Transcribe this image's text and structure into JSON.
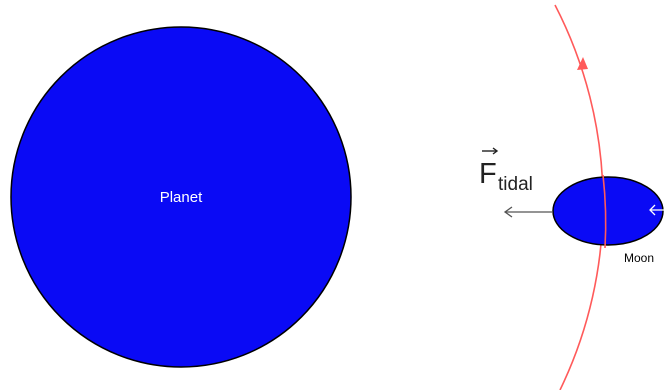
{
  "planet": {
    "label": "Planet"
  },
  "moon": {
    "label": "Moon"
  },
  "force": {
    "symbol": "F",
    "subscript": "tidal"
  },
  "colors": {
    "background": "#ffffff",
    "body_fill": "#0a0af5",
    "body_outline": "#000000",
    "orbit": "#ff5a5a",
    "arrow": "#555555",
    "planet_label": "#ffffff",
    "moon_label": "#000000",
    "force_label": "#222222"
  },
  "icons": {
    "orbit_direction": "arrow-up-icon",
    "tidal_force": "arrow-left-icon"
  }
}
